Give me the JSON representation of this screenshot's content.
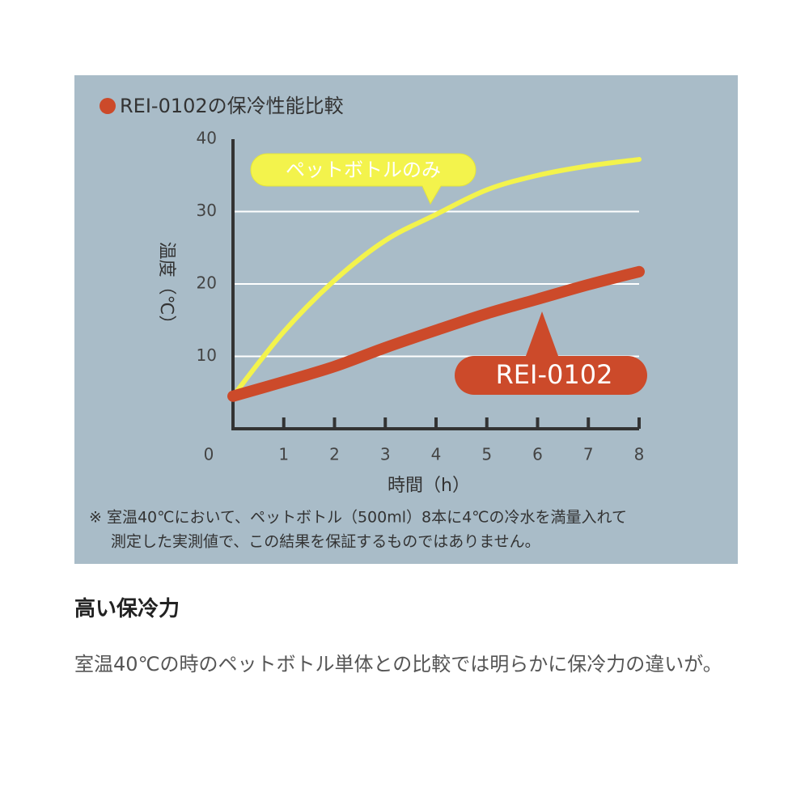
{
  "chart_data": {
    "type": "line",
    "title": "REI-0102の保冷性能比較",
    "x_label": "時間（h）",
    "y_label": "温度（℃）",
    "footnote": [
      "※ 室温40℃において、ペットボトル（500ml）8本に4℃の冷水を満量入れて",
      "測定した実測値で、この結果を保証するものではありません。"
    ],
    "x": [
      0,
      1,
      2,
      3,
      4,
      5,
      6,
      7,
      8
    ],
    "series": [
      {
        "name": "ペットボトルのみ",
        "color": "#f3f34c",
        "values": [
          4.5,
          13.4,
          20.5,
          26,
          29.6,
          33,
          35,
          36.3,
          37.2
        ]
      },
      {
        "name": "REI-0102",
        "color": "#cc4a2a",
        "values": [
          4.5,
          6.5,
          8.6,
          11.2,
          13.6,
          15.9,
          17.9,
          19.9,
          21.7
        ]
      }
    ],
    "xlim": [
      0,
      8
    ],
    "ylim": [
      0,
      40
    ],
    "xticks": [
      0,
      1,
      2,
      3,
      4,
      5,
      6,
      7,
      8
    ],
    "yticks": [
      10,
      20,
      30,
      40
    ],
    "grid": true
  },
  "heading": "高い保冷力",
  "body": "室温40℃の時のペットボトル単体との比較では明らかに保冷力の違いが。"
}
